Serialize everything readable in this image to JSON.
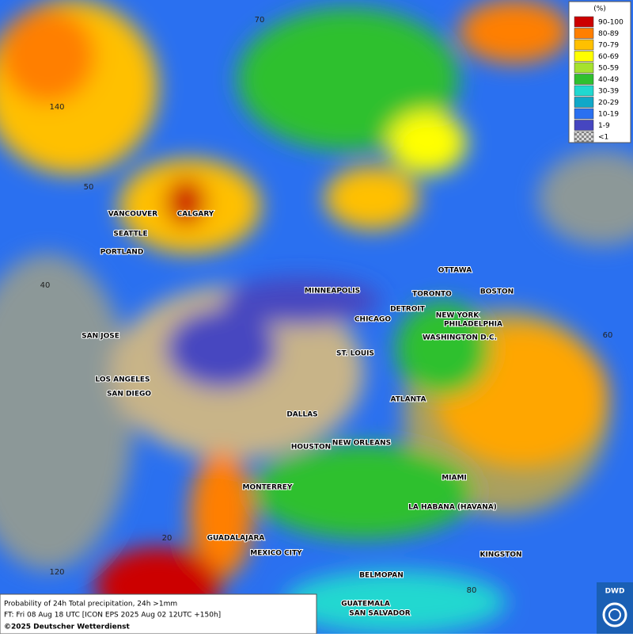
{
  "legend": {
    "title": "(%)",
    "entries": [
      {
        "label": "90-100",
        "color": "#cc0000"
      },
      {
        "label": "80-89",
        "color": "#ff7f00"
      },
      {
        "label": "70-79",
        "color": "#ffc000"
      },
      {
        "label": "60-69",
        "color": "#ffff00"
      },
      {
        "label": "50-59",
        "color": "#a6e22e"
      },
      {
        "label": "40-49",
        "color": "#2fc02f"
      },
      {
        "label": "30-39",
        "color": "#20d8d0"
      },
      {
        "label": "20-29",
        "color": "#10a8c8"
      },
      {
        "label": "10-19",
        "color": "#2a70f0"
      },
      {
        "label": "1-9",
        "color": "#4646c0"
      },
      {
        "label": "<1",
        "color": "#a8a8a8"
      }
    ]
  },
  "grid_labels": [
    "70",
    "140",
    "50",
    "40",
    "60",
    "20",
    "120",
    "80"
  ],
  "cities": [
    "VANCOUVER",
    "CALGARY",
    "SEATTLE",
    "PORTLAND",
    "MINNEAPOLIS",
    "OTTAWA",
    "TORONTO",
    "BOSTON",
    "DETROIT",
    "NEW YORK",
    "CHICAGO",
    "PHILADELPHIA",
    "WASHINGTON D.C.",
    "SAN JOSE",
    "ST. LOUIS",
    "LOS ANGELES",
    "SAN DIEGO",
    "ATLANTA",
    "DALLAS",
    "HOUSTON",
    "NEW ORLEANS",
    "MIAMI",
    "MONTERREY",
    "LA HABANA (HAVANA)",
    "GUADALAJARA",
    "MEXICO CITY",
    "KINGSTON",
    "BELMOPAN",
    "GUATEMALA",
    "SAN SALVADOR"
  ],
  "footer": {
    "line1": "Probability of 24h Total precipitation, 24h >1mm",
    "line2": "FT: Fri 08 Aug 18 UTC [ICON EPS 2025 Aug 02 12UTC +150h]",
    "line3": "©2025 Deutscher Wetterdienst"
  },
  "logo": "DWD"
}
